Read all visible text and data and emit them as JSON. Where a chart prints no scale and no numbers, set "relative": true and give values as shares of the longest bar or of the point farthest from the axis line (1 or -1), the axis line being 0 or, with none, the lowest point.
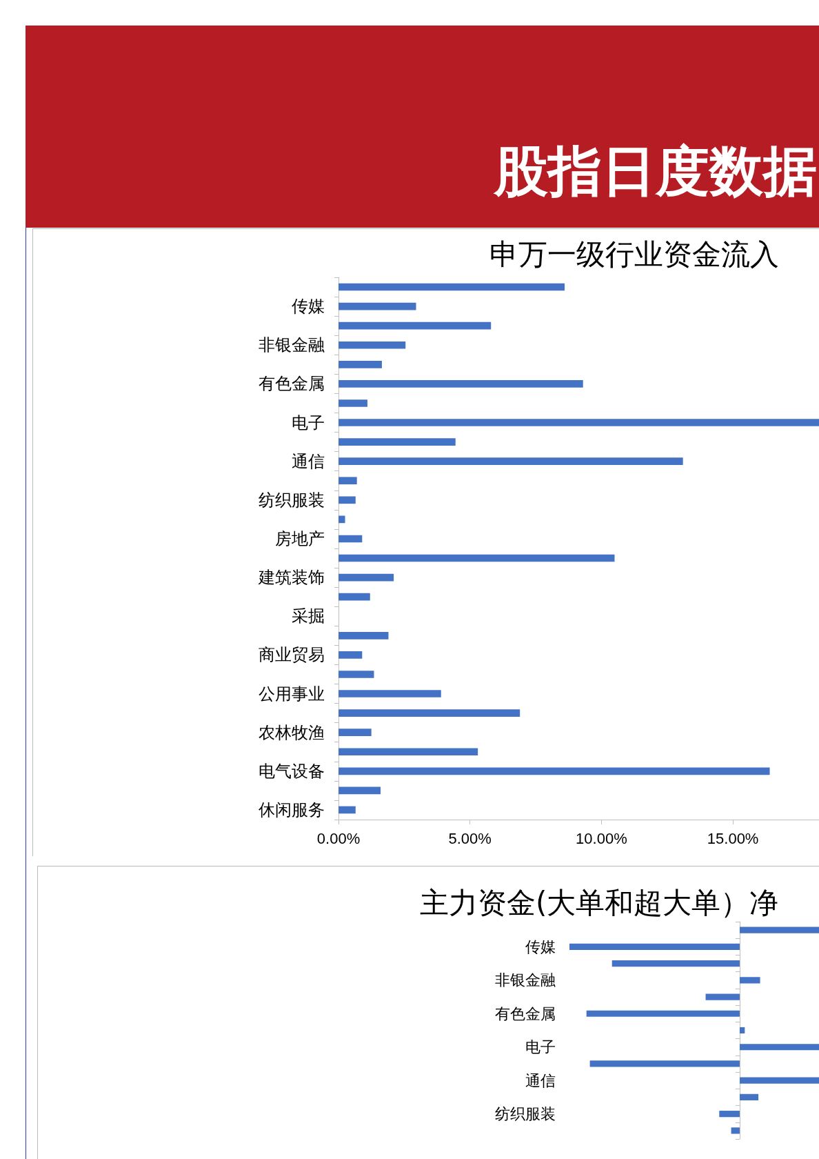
{
  "chart_data": [
    {
      "type": "bar",
      "orientation": "horizontal",
      "title": "申万一级行业资金流入",
      "annotations": [
        "股指日度数据"
      ],
      "categories": [
        null,
        "传媒",
        null,
        "非银金融",
        null,
        "有色金属",
        null,
        "电子",
        null,
        "通信",
        null,
        "纺织服装",
        null,
        "房地产",
        null,
        "建筑装饰",
        null,
        "采掘",
        null,
        "商业贸易",
        null,
        "公用事业",
        null,
        "农林牧渔",
        null,
        "电气设备",
        null,
        "休闲服务"
      ],
      "values": [
        8.6,
        2.95,
        5.8,
        2.55,
        1.65,
        9.3,
        1.1,
        18.3,
        4.45,
        13.1,
        0.7,
        0.65,
        0.25,
        0.9,
        10.5,
        2.1,
        1.2,
        0,
        1.9,
        0.9,
        1.35,
        3.9,
        6.9,
        1.25,
        5.3,
        16.4,
        1.6,
        0.65
      ],
      "color": "#4472c4",
      "xlim": [
        0,
        18.3
      ],
      "xticks": [
        {
          "value": 0,
          "label": "0.00%"
        },
        {
          "value": 5,
          "label": "5.00%"
        },
        {
          "value": 10,
          "label": "10.00%"
        },
        {
          "value": 15,
          "label": "15.00%"
        }
      ]
    },
    {
      "type": "bar",
      "orientation": "horizontal",
      "title": "主力资金(大单和超大单）净",
      "relative": true,
      "tick_labels": "y",
      "categories": [
        null,
        "传媒",
        null,
        "非银金融",
        null,
        "有色金属",
        null,
        "电子",
        null,
        "通信",
        null,
        "纺织服装",
        null
      ],
      "values": [
        0.47,
        -1,
        -0.75,
        0.12,
        -0.2,
        -0.9,
        0.03,
        0.47,
        -0.88,
        0.47,
        0.11,
        -0.12,
        -0.05
      ],
      "color": "#4472c4"
    }
  ]
}
